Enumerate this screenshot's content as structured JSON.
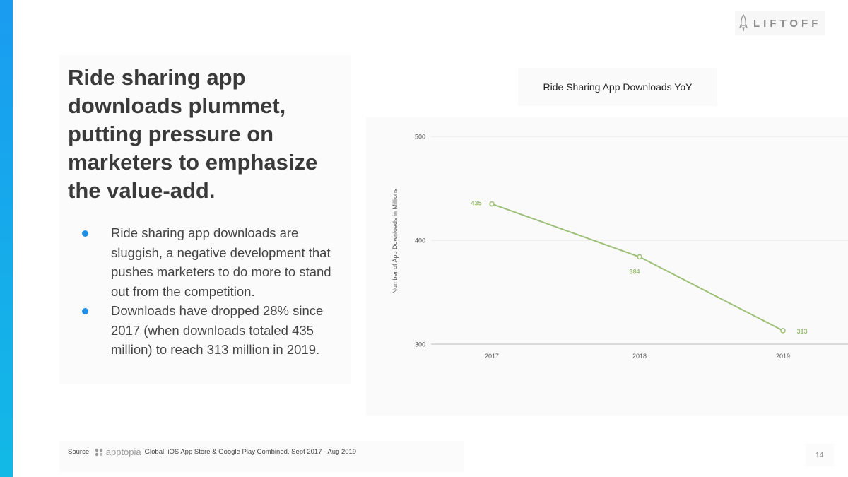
{
  "brand": {
    "name": "LIFTOFF",
    "accent_color": "#1a9cf0"
  },
  "headline": "Ride sharing app downloads plummet, putting pressure on marketers to emphasize the value-add.",
  "bullets": [
    "Ride sharing app downloads are sluggish, a negative development that pushes marketers to do more to stand out from the competition.",
    "Downloads have dropped 28% since 2017 (when downloads totaled 435 million) to reach 313 million in 2019."
  ],
  "source": {
    "label": "Source:",
    "provider": "apptopia",
    "detail": "Global, iOS App Store & Google Play Combined, Sept 2017 - Aug 2019"
  },
  "page_number": "14",
  "chart_data": {
    "type": "line",
    "title": "Ride Sharing App Downloads YoY",
    "xlabel": "",
    "ylabel": "Number of App Downloads in Millions",
    "categories": [
      "2017",
      "2018",
      "2019"
    ],
    "series": [
      {
        "name": "Ride Sharing App Downloads",
        "values": [
          435,
          384,
          313
        ],
        "color": "#9dbf78"
      }
    ],
    "ylim": [
      300,
      500
    ],
    "yticks": [
      300,
      400,
      500
    ],
    "grid": true,
    "legend": "none"
  }
}
